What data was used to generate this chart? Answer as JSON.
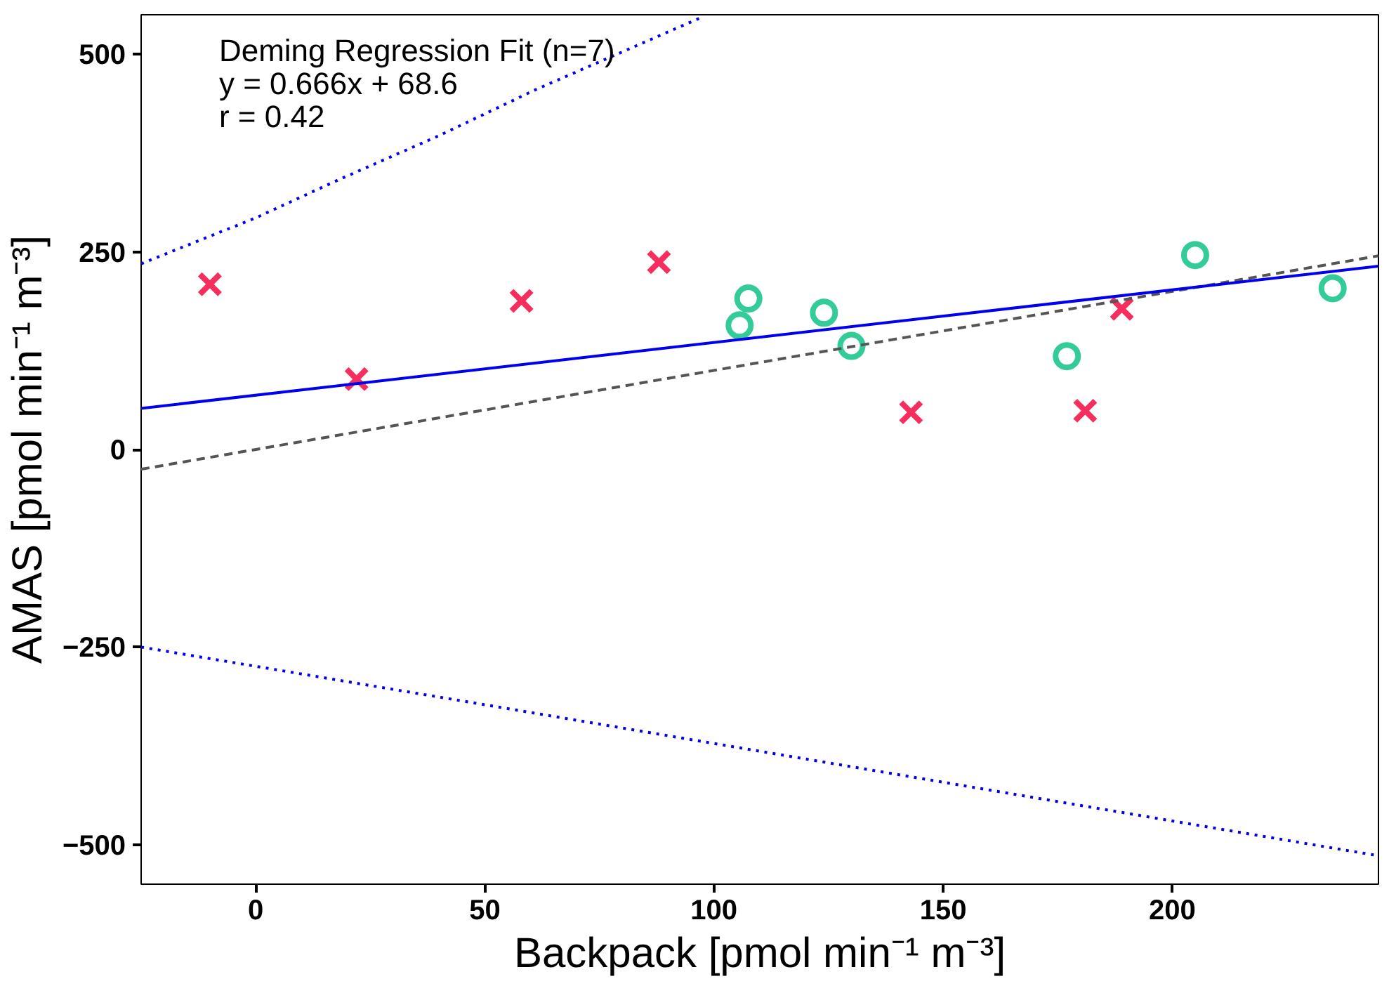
{
  "chart_data": {
    "type": "scatter",
    "xlabel": "Backpack [pmol min⁻¹ m⁻³]",
    "ylabel": "AMAS [pmol min⁻¹ m⁻³]",
    "annotations": [
      "Deming Regression Fit (n=7)",
      "y = 0.666x + 68.6",
      "r = 0.42"
    ],
    "xlim": [
      -25,
      245
    ],
    "ylim": [
      -550,
      550
    ],
    "xticks": [
      0,
      50,
      100,
      150,
      200
    ],
    "yticks": [
      -500,
      -250,
      0,
      250,
      500
    ],
    "grid": false,
    "series": [
      {
        "marker": "cross",
        "color": "#f52e5e",
        "x": [
          -10,
          22,
          58,
          88,
          143,
          181,
          189
        ],
        "values": [
          209,
          89,
          188,
          237,
          47,
          49,
          178
        ]
      },
      {
        "marker": "circle",
        "color": "#33cc99",
        "x": [
          105.6,
          107.5,
          124,
          130,
          177,
          205,
          235
        ],
        "values": [
          157,
          191,
          173,
          131,
          118,
          246,
          204
        ]
      },
      {
        "type": "line",
        "line_style": "dashed",
        "color": "#555555",
        "x": [
          -25,
          245
        ],
        "values": [
          -25,
          245
        ]
      },
      {
        "type": "line",
        "line_style": "solid",
        "color": "#0000ee",
        "x": [
          -25,
          245
        ],
        "values": [
          52,
          232
        ]
      },
      {
        "type": "line",
        "line_style": "dotted",
        "color": "#0000ee",
        "x": [
          -25,
          0,
          18,
          40,
          61,
          97
        ],
        "values": [
          235,
          293,
          341,
          397,
          455,
          546
        ]
      },
      {
        "type": "line",
        "line_style": "dotted",
        "color": "#0000ee",
        "x": [
          -25,
          50,
          100,
          150,
          200,
          245
        ],
        "values": [
          -250,
          -323,
          -372,
          -421,
          -470,
          -514
        ]
      }
    ]
  }
}
